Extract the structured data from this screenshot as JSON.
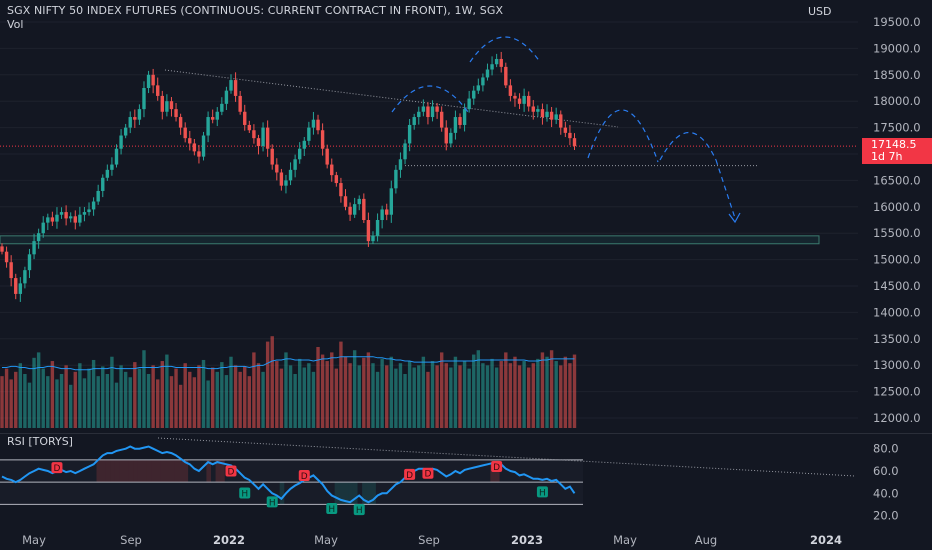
{
  "header": {
    "title": "SGX NIFTY 50 INDEX FUTURES (CONTINUOUS: CURRENT CONTRACT IN FRONT), 1W, SGX",
    "volume_label": "Vol",
    "currency": "USD",
    "rsi_label": "RSI [TORYS]"
  },
  "price_badge": {
    "price": "17148.5",
    "countdown": "1d 7h"
  },
  "colors": {
    "up": "#26a69a",
    "down": "#ef5350",
    "rsi": "#2196f3",
    "drawing": "#2962ff",
    "background": "#131722"
  },
  "chart_data": [
    {
      "type": "candlestick",
      "title": "SGX NIFTY 50 INDEX FUTURES (CONTINUOUS: CURRENT CONTRACT IN FRONT), 1W, SGX",
      "ylim": [
        11700,
        19650
      ],
      "y_ticks": [
        12000,
        12500,
        13000,
        13500,
        14000,
        14500,
        15000,
        15500,
        16000,
        16500,
        17000,
        17500,
        18000,
        18500,
        19000,
        19500
      ],
      "y_tick_labels": [
        "12000.0",
        "12500.0",
        "13000.0",
        "13500.0",
        "14000.0",
        "14500.0",
        "15000.0",
        "15500.0",
        "16000.0",
        "16500.0",
        "17000.0",
        "17500.0",
        "18000.0",
        "18500.0",
        "19000.0",
        "19500.0"
      ],
      "x_ticks": [
        {
          "label": "May",
          "bold": false
        },
        {
          "label": "Sep",
          "bold": false
        },
        {
          "label": "2022",
          "bold": true
        },
        {
          "label": "May",
          "bold": false
        },
        {
          "label": "Sep",
          "bold": false
        },
        {
          "label": "2023",
          "bold": true
        },
        {
          "label": "May",
          "bold": false
        },
        {
          "label": "Aug",
          "bold": false
        },
        {
          "label": "2024",
          "bold": true
        }
      ],
      "last_price": 17148.5,
      "series": {
        "close": [
          15150,
          14950,
          14650,
          14350,
          14550,
          14800,
          15100,
          15350,
          15500,
          15700,
          15800,
          15720,
          15850,
          15900,
          15780,
          15820,
          15700,
          15850,
          15900,
          15950,
          16100,
          16300,
          16550,
          16700,
          16800,
          17100,
          17350,
          17500,
          17700,
          17650,
          17850,
          18250,
          18500,
          18300,
          18100,
          17800,
          18000,
          17850,
          17700,
          17500,
          17300,
          17200,
          17050,
          16950,
          17350,
          17700,
          17650,
          17800,
          17950,
          18200,
          18400,
          18100,
          17800,
          17550,
          17450,
          17300,
          17150,
          17500,
          17100,
          16800,
          16650,
          16400,
          16500,
          16700,
          16900,
          17100,
          17250,
          17500,
          17650,
          17450,
          17100,
          16800,
          16600,
          16450,
          16200,
          16000,
          15850,
          16050,
          16150,
          15750,
          15350,
          15450,
          15750,
          15950,
          15850,
          16350,
          16700,
          16900,
          17200,
          17550,
          17700,
          17800,
          17900,
          17700,
          17900,
          17800,
          17500,
          17200,
          17400,
          17700,
          17550,
          17850,
          18050,
          18200,
          18300,
          18450,
          18600,
          18700,
          18800,
          18650,
          18300,
          18100,
          18050,
          17950,
          18100,
          17900,
          17800,
          17850,
          17700,
          17800,
          17650,
          17750,
          17500,
          17400,
          17300,
          17150
        ]
      },
      "horizontal_zone": [
        15300,
        15450
      ],
      "horizontal_support": 16780
    },
    {
      "type": "bar",
      "title": "Vol",
      "series": [
        {
          "name": "Volume",
          "values": [
            0.48,
            0.55,
            0.45,
            0.52,
            0.6,
            0.5,
            0.42,
            0.65,
            0.7,
            0.55,
            0.48,
            0.62,
            0.45,
            0.5,
            0.58,
            0.4,
            0.52,
            0.6,
            0.46,
            0.55,
            0.63,
            0.48,
            0.57,
            0.5,
            0.66,
            0.42,
            0.58,
            0.52,
            0.47,
            0.61,
            0.55,
            0.72,
            0.5,
            0.58,
            0.45,
            0.62,
            0.68,
            0.48,
            0.55,
            0.4,
            0.6,
            0.52,
            0.47,
            0.58,
            0.63,
            0.44,
            0.56,
            0.52,
            0.61,
            0.49,
            0.66,
            0.58,
            0.52,
            0.57,
            0.48,
            0.7,
            0.6,
            0.52,
            0.8,
            0.85,
            0.62,
            0.55,
            0.7,
            0.58,
            0.5,
            0.64,
            0.56,
            0.6,
            0.52,
            0.75,
            0.68,
            0.62,
            0.7,
            0.55,
            0.8,
            0.66,
            0.6,
            0.72,
            0.58,
            0.65,
            0.7,
            0.6,
            0.52,
            0.64,
            0.58,
            0.66,
            0.55,
            0.6,
            0.5,
            0.62,
            0.56,
            0.58,
            0.66,
            0.52,
            0.62,
            0.58,
            0.7,
            0.6,
            0.56,
            0.66,
            0.58,
            0.62,
            0.55,
            0.68,
            0.72,
            0.6,
            0.58,
            0.64,
            0.56,
            0.62,
            0.7,
            0.6,
            0.66,
            0.58,
            0.62,
            0.56,
            0.6,
            0.64,
            0.7,
            0.66,
            0.72,
            0.62,
            0.58,
            0.66,
            0.6,
            0.68
          ]
        },
        {
          "name": "Volume MA",
          "values": [
            0.56,
            0.56,
            0.57,
            0.57,
            0.56,
            0.56,
            0.55,
            0.55,
            0.56,
            0.56,
            0.57,
            0.57,
            0.56,
            0.55,
            0.55,
            0.55,
            0.54,
            0.54,
            0.54,
            0.54,
            0.55,
            0.55,
            0.55,
            0.55,
            0.56,
            0.55,
            0.55,
            0.55,
            0.55,
            0.55,
            0.56,
            0.56,
            0.56,
            0.56,
            0.56,
            0.57,
            0.57,
            0.57,
            0.56,
            0.56,
            0.56,
            0.56,
            0.56,
            0.56,
            0.56,
            0.55,
            0.55,
            0.55,
            0.56,
            0.56,
            0.57,
            0.57,
            0.57,
            0.57,
            0.56,
            0.57,
            0.58,
            0.58,
            0.6,
            0.62,
            0.63,
            0.63,
            0.64,
            0.64,
            0.63,
            0.63,
            0.63,
            0.63,
            0.62,
            0.63,
            0.64,
            0.64,
            0.65,
            0.65,
            0.66,
            0.66,
            0.66,
            0.66,
            0.66,
            0.66,
            0.66,
            0.66,
            0.65,
            0.65,
            0.64,
            0.64,
            0.63,
            0.63,
            0.62,
            0.62,
            0.61,
            0.61,
            0.61,
            0.61,
            0.61,
            0.61,
            0.62,
            0.62,
            0.62,
            0.62,
            0.62,
            0.62,
            0.62,
            0.62,
            0.63,
            0.63,
            0.63,
            0.63,
            0.63,
            0.63,
            0.63,
            0.63,
            0.63,
            0.63,
            0.63,
            0.62,
            0.62,
            0.62,
            0.63,
            0.63,
            0.64,
            0.64,
            0.64,
            0.64,
            0.64,
            0.64
          ]
        }
      ]
    },
    {
      "type": "line",
      "title": "RSI [TORYS]",
      "ylim": [
        16,
        86
      ],
      "y_ticks": [
        20,
        40,
        60,
        80
      ],
      "y_tick_labels": [
        "20.0",
        "40.0",
        "60.0",
        "80.0"
      ],
      "levels": [
        30,
        50,
        70
      ],
      "series": [
        {
          "name": "RSI",
          "values": [
            55,
            53,
            52,
            50,
            52,
            55,
            58,
            60,
            62,
            61,
            60,
            58,
            60,
            61,
            59,
            60,
            58,
            60,
            62,
            64,
            66,
            70,
            74,
            76,
            76,
            78,
            79,
            80,
            82,
            80,
            80,
            81,
            82,
            80,
            78,
            76,
            77,
            76,
            74,
            71,
            68,
            66,
            62,
            60,
            64,
            68,
            66,
            68,
            67,
            66,
            65,
            62,
            58,
            54,
            52,
            48,
            44,
            48,
            44,
            40,
            38,
            35,
            40,
            44,
            47,
            49,
            52,
            54,
            56,
            52,
            48,
            42,
            38,
            36,
            34,
            33,
            32,
            35,
            38,
            34,
            32,
            34,
            38,
            40,
            40,
            44,
            48,
            50,
            54,
            58,
            60,
            62,
            62,
            60,
            62,
            61,
            58,
            55,
            57,
            60,
            58,
            61,
            62,
            63,
            64,
            65,
            66,
            67,
            68,
            66,
            62,
            60,
            59,
            56,
            57,
            55,
            53,
            53,
            52,
            53,
            51,
            52,
            48,
            44,
            46,
            40
          ]
        }
      ],
      "markers": [
        {
          "label": "D",
          "value": 67
        },
        {
          "label": "D",
          "value": 64
        },
        {
          "label": "D",
          "value": 60
        },
        {
          "label": "D",
          "value": 61
        },
        {
          "label": "D",
          "value": 62
        },
        {
          "label": "D",
          "value": 68
        },
        {
          "label": "H",
          "value": 47
        },
        {
          "label": "H",
          "value": 39
        },
        {
          "label": "H",
          "value": 33
        },
        {
          "label": "H",
          "value": 32
        },
        {
          "label": "H",
          "value": 48
        }
      ]
    }
  ]
}
